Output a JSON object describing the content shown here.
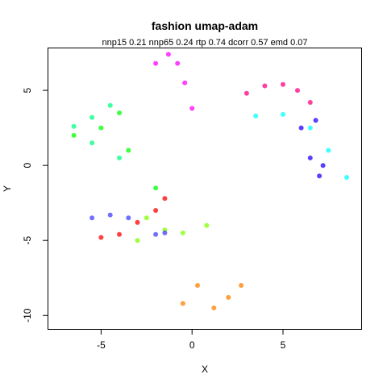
{
  "chart_data": {
    "type": "scatter",
    "title": "fashion umap-adam",
    "subtitle": "nnp15 0.21 nnp65 0.24 rtp 0.74 dcorr 0.57 emd 0.07",
    "xlabel": "X",
    "ylabel": "Y",
    "xlim": [
      -7.9,
      9.3
    ],
    "ylim": [
      -10.9,
      7.8
    ],
    "xticks": [
      -5,
      0,
      5
    ],
    "xtick_labels": [
      "-5",
      "0",
      "5"
    ],
    "yticks": [
      -10,
      -5,
      0,
      5
    ],
    "ytick_labels": [
      "-10",
      "-5",
      "0",
      "5"
    ],
    "grid": false,
    "legend": "none",
    "series": [
      {
        "color": "#ff00ff",
        "points": [
          [
            -2.0,
            6.8
          ],
          [
            -1.3,
            7.4
          ],
          [
            -0.8,
            6.8
          ],
          [
            -0.4,
            5.5
          ],
          [
            0.0,
            3.8
          ]
        ]
      },
      {
        "color": "#ff0080",
        "points": [
          [
            3.0,
            4.8
          ],
          [
            4.0,
            5.3
          ],
          [
            5.0,
            5.4
          ],
          [
            5.8,
            5.0
          ],
          [
            6.5,
            4.2
          ]
        ]
      },
      {
        "color": "#00ffff",
        "points": [
          [
            3.5,
            3.3
          ],
          [
            5.0,
            3.4
          ],
          [
            6.5,
            2.5
          ],
          [
            7.5,
            1.0
          ],
          [
            8.5,
            -0.8
          ]
        ]
      },
      {
        "color": "#2000ff",
        "points": [
          [
            6.0,
            2.5
          ],
          [
            6.8,
            3.0
          ],
          [
            6.5,
            0.5
          ],
          [
            7.2,
            0.0
          ],
          [
            7.0,
            -0.7
          ]
        ]
      },
      {
        "color": "#00ff00",
        "points": [
          [
            -6.5,
            2.0
          ],
          [
            -5.0,
            2.5
          ],
          [
            -4.0,
            3.5
          ],
          [
            -3.5,
            1.0
          ],
          [
            -2.0,
            -1.5
          ]
        ]
      },
      {
        "color": "#00ff80",
        "points": [
          [
            -6.5,
            2.6
          ],
          [
            -5.5,
            3.2
          ],
          [
            -4.5,
            4.0
          ],
          [
            -5.5,
            1.5
          ],
          [
            -4.0,
            0.5
          ]
        ]
      },
      {
        "color": "#80ff00",
        "points": [
          [
            -2.5,
            -3.5
          ],
          [
            -1.5,
            -4.3
          ],
          [
            -0.5,
            -4.5
          ],
          [
            0.8,
            -4.0
          ],
          [
            -3.0,
            -5.0
          ]
        ]
      },
      {
        "color": "#ff0000",
        "points": [
          [
            -5.0,
            -4.8
          ],
          [
            -4.0,
            -4.6
          ],
          [
            -3.0,
            -3.8
          ],
          [
            -2.0,
            -3.0
          ],
          [
            -1.5,
            -2.2
          ]
        ]
      },
      {
        "color": "#ff8000",
        "points": [
          [
            -0.5,
            -9.2
          ],
          [
            0.3,
            -8.0
          ],
          [
            1.2,
            -9.5
          ],
          [
            2.0,
            -8.8
          ],
          [
            2.7,
            -8.0
          ]
        ]
      },
      {
        "color": "#4040ff",
        "points": [
          [
            -5.5,
            -3.5
          ],
          [
            -4.5,
            -3.3
          ],
          [
            -3.5,
            -3.5
          ],
          [
            -2.0,
            -4.6
          ],
          [
            -1.5,
            -4.5
          ]
        ]
      }
    ]
  }
}
